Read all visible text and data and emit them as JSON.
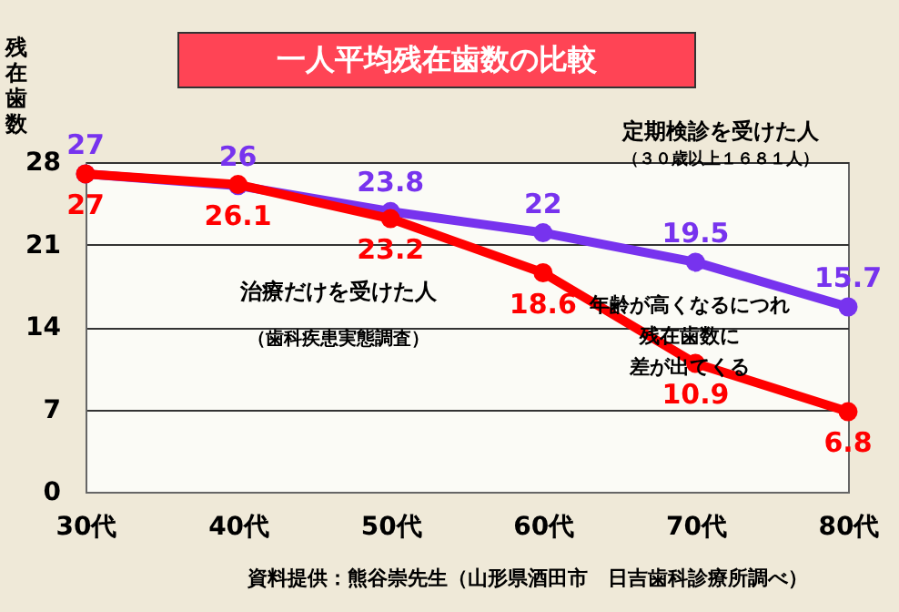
{
  "chart_data": {
    "type": "line",
    "title": "一人平均残在歯数の比較",
    "ylabel": "残在歯数",
    "categories": [
      "30代",
      "40代",
      "50代",
      "60代",
      "70代",
      "80代"
    ],
    "series": [
      {
        "color": "#7733ee",
        "values": [
          27,
          26,
          23.8,
          22,
          19.5,
          15.7
        ]
      },
      {
        "color": "#ff0000",
        "values": [
          27,
          26.1,
          23.2,
          18.6,
          10.9,
          6.8
        ]
      }
    ],
    "ylim": [
      0,
      28
    ],
    "yticks": [
      0,
      7,
      14,
      21,
      28
    ],
    "grid": "y",
    "marker": "circle",
    "line_style": "solid",
    "data_labels": true,
    "annotations": [
      "定期検診を受けた人",
      "（３０歳以上１６８１人）",
      "治療だけを受けた人",
      "（歯科疾患実態調査）",
      "年齢が高くなるにつれ残在歯数に差が出てくる",
      "資料提供：熊谷崇先生（山形県酒田市　日吉歯科診療所調べ）"
    ]
  }
}
